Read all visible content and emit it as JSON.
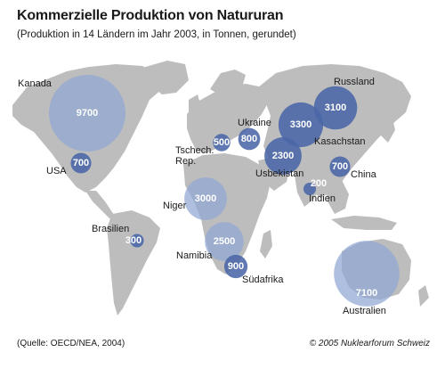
{
  "header": {
    "title": "Kommerzielle Produktion von Natururan",
    "subtitle": "(Produktion in 14 Ländern im Jahr 2003, in Tonnen, gerundet)"
  },
  "footer": {
    "source": "(Quelle: OECD/NEA, 2004)",
    "credit": "© 2005 Nuklearforum Schweiz"
  },
  "colors": {
    "land": "#bdbdbd",
    "bubble_light": "#8fa6d2",
    "bubble_dark": "#4a66a8"
  },
  "map_data": {
    "unit": "Tonnen",
    "year": 2003,
    "countries": [
      {
        "key": "kanada",
        "name": "Kanada",
        "value": 9700
      },
      {
        "key": "usa",
        "name": "USA",
        "value": 700
      },
      {
        "key": "brasilien",
        "name": "Brasilien",
        "value": 300
      },
      {
        "key": "niger",
        "name": "Niger",
        "value": 3000
      },
      {
        "key": "namibia",
        "name": "Namibia",
        "value": 2500
      },
      {
        "key": "suedafrika",
        "name": "Südafrika",
        "value": 900
      },
      {
        "key": "tschechien",
        "name": "Tschech.\nRep.",
        "value": 500
      },
      {
        "key": "ukraine",
        "name": "Ukraine",
        "value": 800
      },
      {
        "key": "russland",
        "name": "Russland",
        "value": 3100
      },
      {
        "key": "kasachstan",
        "name": "Kasachstan",
        "value": 3300
      },
      {
        "key": "usbekistan",
        "name": "Usbekistan",
        "value": 2300
      },
      {
        "key": "china",
        "name": "China",
        "value": 700
      },
      {
        "key": "indien",
        "name": "Indien",
        "value": 200
      },
      {
        "key": "australien",
        "name": "Australien",
        "value": 7100
      }
    ]
  }
}
